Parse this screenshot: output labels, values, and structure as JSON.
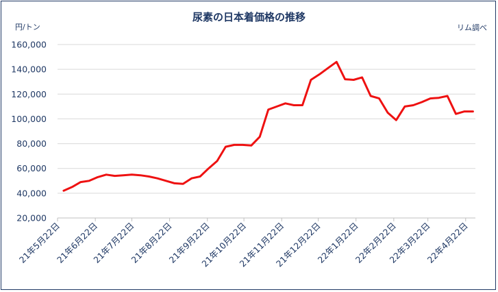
{
  "chart_data": {
    "type": "line",
    "title": "尿素の日本着価格の推移",
    "unit_label": "円/トン",
    "source_label": "リム調べ",
    "y_ticks": [
      "20,000",
      "40,000",
      "60,000",
      "80,000",
      "100,000",
      "120,000",
      "140,000",
      "160,000"
    ],
    "ylim": [
      20000,
      160000
    ],
    "grid": true,
    "x_tick_labels": [
      "21年5月22日",
      "21年6月22日",
      "21年7月22日",
      "21年8月22日",
      "21年9月22日",
      "21年10月22日",
      "21年11月22日",
      "21年12月22日",
      "22年1月22日",
      "22年2月22日",
      "22年3月22日",
      "22年4月22日"
    ],
    "series": [
      {
        "color": "#ee1111",
        "x": [
          "2021-05-27",
          "2021-06-03",
          "2021-06-10",
          "2021-06-17",
          "2021-06-24",
          "2021-07-01",
          "2021-07-08",
          "2021-07-15",
          "2021-07-22",
          "2021-07-29",
          "2021-08-05",
          "2021-08-12",
          "2021-08-19",
          "2021-08-26",
          "2021-09-02",
          "2021-09-09",
          "2021-09-16",
          "2021-09-23",
          "2021-09-30",
          "2021-10-07",
          "2021-10-14",
          "2021-10-21",
          "2021-10-28",
          "2021-11-04",
          "2021-11-11",
          "2021-11-18",
          "2021-11-25",
          "2021-12-02",
          "2021-12-09",
          "2021-12-16",
          "2021-12-23",
          "2021-12-30",
          "2022-01-06",
          "2022-01-13",
          "2022-01-20",
          "2022-01-27",
          "2022-02-03",
          "2022-02-10",
          "2022-02-17",
          "2022-02-24",
          "2022-03-03",
          "2022-03-10",
          "2022-03-17",
          "2022-03-24",
          "2022-03-31",
          "2022-04-07",
          "2022-04-14",
          "2022-04-21",
          "2022-04-28"
        ],
        "values": [
          42000,
          45000,
          49000,
          50000,
          53000,
          55000,
          54000,
          54500,
          55000,
          54500,
          53500,
          52000,
          50000,
          48000,
          47500,
          52000,
          53500,
          60000,
          66000,
          77500,
          79000,
          79000,
          78500,
          85500,
          107500,
          110000,
          112500,
          111000,
          111000,
          131500,
          136000,
          141000,
          146000,
          132000,
          131500,
          133500,
          118500,
          116500,
          105000,
          99000,
          110000,
          111000,
          113500,
          116500,
          117000,
          118500,
          104000,
          106000,
          106000
        ]
      }
    ]
  }
}
